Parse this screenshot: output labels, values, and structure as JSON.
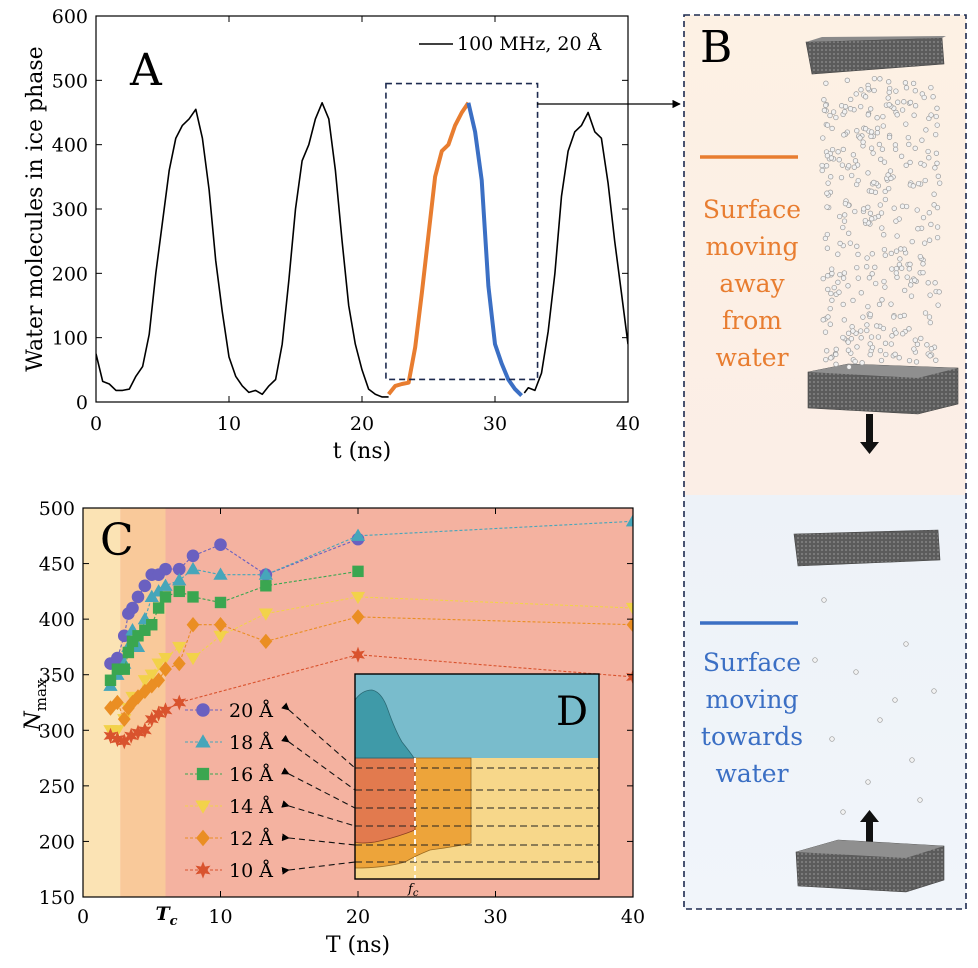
{
  "panels": {
    "a_letter": "A",
    "b_letter": "B",
    "c_letter": "C",
    "d_letter": "D"
  },
  "panel_b": {
    "orange_text": [
      "Surface",
      "moving",
      "away",
      "from",
      "water"
    ],
    "blue_text": [
      "Surface",
      "moving",
      "towards",
      "water"
    ],
    "orange_color": "#e87d30",
    "blue_color": "#3b6fc4"
  },
  "chart_data": [
    {
      "type": "line",
      "panel": "A",
      "xlabel": "t (ns)",
      "ylabel": "Water molecules in ice phase",
      "xlim": [
        0,
        40
      ],
      "ylim": [
        0,
        600
      ],
      "xticks": [
        "0",
        "10",
        "20",
        "30",
        "40"
      ],
      "yticks": [
        "0",
        "100",
        "200",
        "300",
        "400",
        "500",
        "600"
      ],
      "legend": {
        "label": "100 MHz, 20 Å",
        "position": "top-right"
      },
      "series": [
        {
          "name": "100 MHz, 20 Å",
          "color": "#000000",
          "x": [
            0,
            0.5,
            1,
            1.5,
            2,
            2.5,
            3,
            3.5,
            4,
            4.5,
            5,
            5.5,
            6,
            6.5,
            7,
            7.5,
            8,
            8.5,
            9,
            9.5,
            10,
            10.5,
            11,
            11.5,
            12,
            12.5,
            13,
            13.5,
            14,
            14.5,
            15,
            15.5,
            16,
            16.5,
            17,
            17.5,
            18,
            18.5,
            19,
            19.5,
            20,
            20.5,
            21,
            21.5,
            22
          ],
          "y": [
            75,
            32,
            28,
            18,
            18,
            20,
            40,
            55,
            105,
            200,
            280,
            360,
            410,
            430,
            440,
            455,
            410,
            330,
            220,
            140,
            70,
            40,
            25,
            15,
            18,
            12,
            25,
            35,
            90,
            190,
            300,
            375,
            400,
            440,
            465,
            440,
            360,
            250,
            150,
            90,
            50,
            20,
            12,
            8,
            8
          ]
        },
        {
          "name": "",
          "color": "#000000",
          "x": [
            32.2,
            32.5,
            33,
            33.5,
            34,
            34.5,
            35,
            35.5,
            36,
            36.5,
            37,
            37.5,
            38,
            38.5,
            39,
            39.5,
            40
          ],
          "y": [
            14,
            22,
            18,
            45,
            110,
            200,
            320,
            390,
            420,
            430,
            450,
            420,
            410,
            340,
            250,
            170,
            90
          ]
        },
        {
          "name": "Surface moving away from water",
          "color": "#e87d30",
          "x": [
            22,
            22.5,
            23,
            23.5,
            24,
            24.5,
            25,
            25.5,
            26,
            26.5,
            27,
            27.5,
            28
          ],
          "y": [
            12,
            25,
            28,
            30,
            85,
            170,
            260,
            350,
            390,
            400,
            430,
            450,
            465
          ]
        },
        {
          "name": "Surface moving towards water",
          "color": "#3b6fc4",
          "x": [
            28,
            28.5,
            29,
            29.5,
            30,
            30.5,
            31,
            31.5,
            32
          ],
          "y": [
            465,
            420,
            345,
            180,
            90,
            60,
            35,
            20,
            10
          ]
        }
      ],
      "annotation_box": {
        "x": [
          21.8,
          33.2
        ],
        "y": [
          35,
          495
        ]
      }
    },
    {
      "type": "line",
      "panel": "C",
      "xlabel": "T (ns)",
      "ylabel": "N_max",
      "ylabel_main": "N",
      "ylabel_sub": "max",
      "xlim": [
        0,
        40
      ],
      "ylim": [
        150,
        500
      ],
      "xticks": [
        "0",
        "10",
        "20",
        "30",
        "40"
      ],
      "yticks": [
        "150",
        "200",
        "250",
        "300",
        "350",
        "400",
        "450",
        "500"
      ],
      "tc_label": "T",
      "tc_sub": "c",
      "tc_value": 6,
      "background_bands": [
        {
          "from": 0,
          "to": 2.7,
          "color": "#fbe3b4"
        },
        {
          "from": 2.7,
          "to": 6,
          "color": "#f9c99a"
        },
        {
          "from": 6,
          "to": 40,
          "color": "#f4b2a0"
        }
      ],
      "series": [
        {
          "name": "20 Å",
          "color": "#6a60c0",
          "marker": "circle",
          "x": [
            2,
            2.5,
            3,
            3.3,
            3.6,
            4,
            4.5,
            5,
            5.5,
            6,
            7,
            8,
            10,
            13.3,
            20
          ],
          "y": [
            360,
            365,
            385,
            405,
            410,
            420,
            430,
            440,
            440,
            445,
            445,
            457,
            467,
            440,
            472
          ]
        },
        {
          "name": "18 Å",
          "color": "#46a6ba",
          "marker": "triangle",
          "x": [
            2,
            2.5,
            3,
            3.3,
            3.6,
            4,
            4.5,
            5,
            5.5,
            6,
            7,
            8,
            10,
            13.3,
            20,
            40
          ],
          "y": [
            340,
            350,
            360,
            375,
            390,
            375,
            400,
            420,
            425,
            430,
            435,
            445,
            440,
            440,
            475,
            488
          ]
        },
        {
          "name": "16 Å",
          "color": "#3aa650",
          "marker": "square",
          "x": [
            2,
            2.5,
            3,
            3.3,
            3.6,
            4,
            4.5,
            5,
            5.5,
            6,
            7,
            8,
            10,
            13.3,
            20
          ],
          "y": [
            345,
            355,
            355,
            370,
            380,
            385,
            390,
            395,
            410,
            420,
            425,
            420,
            415,
            430,
            443
          ]
        },
        {
          "name": "14 Å",
          "color": "#f2d24a",
          "marker": "triangle-down",
          "x": [
            2,
            2.5,
            3,
            3.3,
            3.6,
            4,
            4.5,
            5,
            5.5,
            6,
            7,
            8,
            10,
            13.3,
            20,
            40
          ],
          "y": [
            300,
            300,
            310,
            320,
            330,
            330,
            345,
            350,
            360,
            365,
            375,
            365,
            385,
            405,
            420,
            410
          ]
        },
        {
          "name": "12 Å",
          "color": "#ea8e23",
          "marker": "diamond",
          "x": [
            2,
            2.5,
            3,
            3.3,
            3.6,
            4,
            4.5,
            5,
            5.5,
            6,
            7,
            8,
            10,
            13.3,
            20,
            40
          ],
          "y": [
            320,
            325,
            310,
            320,
            325,
            330,
            335,
            340,
            345,
            355,
            360,
            395,
            395,
            380,
            402,
            395
          ]
        },
        {
          "name": "10 Å",
          "color": "#d9532e",
          "marker": "star",
          "x": [
            2,
            2.5,
            3,
            3.5,
            4,
            4.5,
            5,
            5.5,
            6,
            7,
            20,
            40
          ],
          "y": [
            295,
            292,
            290,
            295,
            298,
            300,
            310,
            315,
            318,
            325,
            368,
            348
          ]
        }
      ],
      "legend_position": "lower-middle"
    },
    {
      "type": "area",
      "panel": "D",
      "label": "D",
      "fc_label": "f",
      "fc_sub": "c",
      "colors": {
        "top": "#79bccc",
        "bottom": "#f7d78a",
        "overlap": "#e27a4e",
        "mid": "#eda43a",
        "dark": "#3f9aa8"
      }
    }
  ]
}
